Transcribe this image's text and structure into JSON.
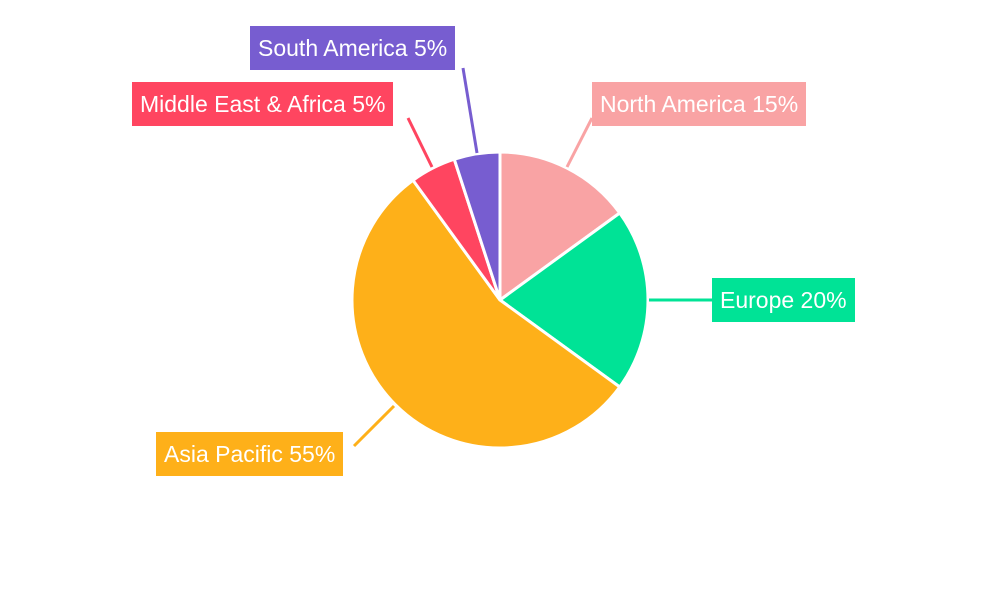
{
  "chart_data": {
    "type": "pie",
    "categories": [
      "North America",
      "Europe",
      "Asia Pacific",
      "Middle East & Africa",
      "South America"
    ],
    "values": [
      15,
      20,
      55,
      5,
      5
    ],
    "labels": [
      "North America 15%",
      "Europe 20%",
      "Asia Pacific 55%",
      "Middle East & Africa 5%",
      "South America 5%"
    ],
    "colors": [
      "#f9a3a4",
      "#00e396",
      "#feb019",
      "#ff4560",
      "#775dd0"
    ],
    "start": "top, clockwise",
    "legend": "none"
  }
}
